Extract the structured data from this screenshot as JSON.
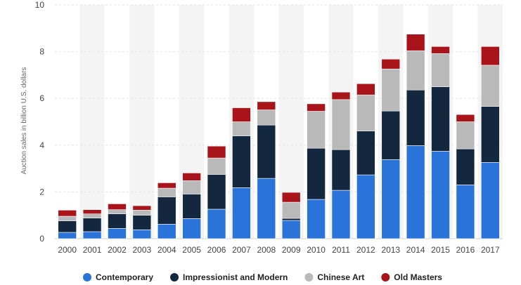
{
  "chart_data": {
    "type": "bar",
    "stacked": true,
    "categories": [
      "2000",
      "2001",
      "2002",
      "2003",
      "2004",
      "2005",
      "2006",
      "2007",
      "2008",
      "2009",
      "2010",
      "2011",
      "2012",
      "2013",
      "2014",
      "2015",
      "2016",
      "2017"
    ],
    "ylabel": "Auction sales in billion U.S. dollars",
    "xlabel": "",
    "ylim": [
      0,
      10
    ],
    "yticks": [
      0,
      2,
      4,
      6,
      8,
      10
    ],
    "grid": true,
    "legend_position": "bottom",
    "series": [
      {
        "name": "Contemporary",
        "color": "#2a73d9",
        "values": [
          0.27,
          0.3,
          0.44,
          0.38,
          0.62,
          0.86,
          1.26,
          2.18,
          2.58,
          0.78,
          1.68,
          2.07,
          2.73,
          3.38,
          3.98,
          3.74,
          2.3,
          3.26
        ]
      },
      {
        "name": "Impressionist and Modern",
        "color": "#13273f",
        "values": [
          0.49,
          0.58,
          0.62,
          0.62,
          1.17,
          1.05,
          1.49,
          2.22,
          2.28,
          0.09,
          2.19,
          1.74,
          1.88,
          2.08,
          2.38,
          2.76,
          1.54,
          2.4
        ]
      },
      {
        "name": "Chinese Art",
        "color": "#b9b9b9",
        "values": [
          0.2,
          0.18,
          0.18,
          0.22,
          0.37,
          0.57,
          0.7,
          0.6,
          0.65,
          0.69,
          1.58,
          2.14,
          1.54,
          1.8,
          1.68,
          1.42,
          1.16,
          1.76
        ]
      },
      {
        "name": "Old Masters",
        "color": "#a8141a",
        "values": [
          0.26,
          0.18,
          0.25,
          0.19,
          0.23,
          0.33,
          0.51,
          0.6,
          0.35,
          0.42,
          0.32,
          0.32,
          0.48,
          0.42,
          0.71,
          0.3,
          0.31,
          0.8
        ]
      }
    ]
  }
}
